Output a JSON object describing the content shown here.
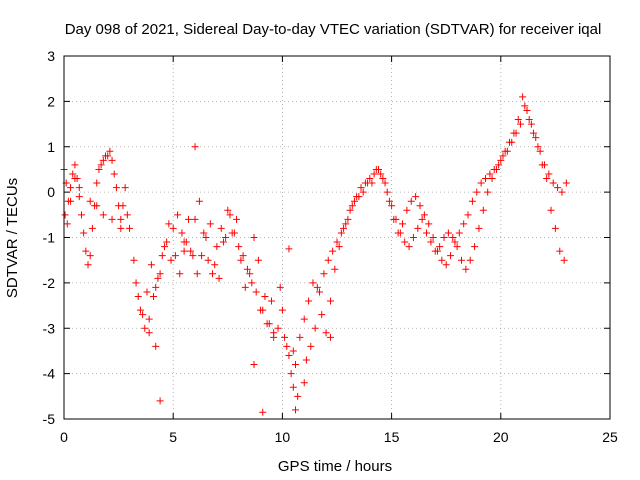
{
  "chart_data": {
    "type": "scatter",
    "title": "Day 098 of 2021, Sidereal Day-to-day VTEC variation (SDTVAR) for receiver iqal",
    "xlabel": "GPS time / hours",
    "ylabel": "SDTVAR / TECUs",
    "xlim": [
      0,
      25
    ],
    "ylim": [
      -5,
      3
    ],
    "xticks": [
      0,
      5,
      10,
      15,
      20,
      25
    ],
    "yticks": [
      -5,
      -4,
      -3,
      -2,
      -1,
      0,
      1,
      2,
      3
    ],
    "grid": true,
    "marker": "+",
    "series": [
      {
        "name": "SDTVAR",
        "color": "#ff0000",
        "x": [
          0.0,
          0.1,
          0.2,
          0.3,
          0.4,
          0.5,
          0.6,
          0.7,
          0.8,
          0.9,
          1.0,
          1.1,
          1.2,
          1.3,
          1.4,
          1.5,
          1.6,
          1.7,
          1.8,
          1.9,
          2.0,
          2.1,
          2.2,
          2.3,
          2.4,
          2.5,
          2.6,
          2.7,
          2.8,
          2.9,
          3.0,
          3.2,
          3.4,
          3.6,
          3.8,
          4.0,
          4.2,
          4.4,
          4.6,
          4.8,
          5.0,
          5.2,
          5.4,
          5.6,
          5.8,
          6.0,
          6.2,
          6.4,
          6.6,
          6.8,
          7.0,
          7.2,
          7.4,
          7.6,
          7.8,
          8.0,
          8.2,
          8.4,
          8.6,
          8.8,
          9.0,
          9.2,
          9.4,
          9.6,
          9.8,
          10.0,
          10.2,
          10.4,
          10.6,
          10.8,
          11.0,
          11.2,
          11.4,
          11.6,
          11.8,
          12.0,
          12.2,
          12.4,
          12.6,
          12.8,
          13.0,
          13.2,
          13.4,
          13.6,
          13.8,
          14.0,
          14.2,
          14.4,
          14.6,
          14.8,
          15.0,
          15.2,
          15.4,
          15.6,
          15.8,
          16.0,
          16.2,
          16.4,
          16.6,
          16.8,
          17.0,
          17.2,
          17.4,
          17.6,
          17.8,
          18.0,
          18.2,
          18.4,
          18.6,
          18.8,
          19.0,
          19.2,
          19.4,
          19.6,
          19.8,
          20.0,
          20.2,
          20.4,
          20.6,
          20.8,
          21.0,
          21.2,
          21.4,
          21.6,
          21.8,
          22.0,
          22.2,
          22.4,
          22.6,
          22.8,
          23.0,
          0.05,
          0.15,
          0.3,
          0.5,
          0.7,
          1.2,
          1.5,
          1.8,
          2.2,
          2.6,
          3.3,
          3.5,
          3.7,
          3.9,
          4.1,
          4.3,
          4.5,
          4.7,
          4.9,
          5.1,
          5.3,
          5.5,
          5.7,
          5.9,
          6.1,
          6.3,
          6.5,
          6.7,
          6.9,
          7.1,
          7.3,
          7.5,
          7.7,
          7.9,
          8.1,
          8.3,
          8.5,
          8.7,
          8.9,
          9.1,
          9.3,
          9.5,
          9.9,
          10.1,
          10.3,
          10.5,
          10.7,
          11.1,
          11.3,
          11.5,
          11.7,
          11.9,
          12.1,
          12.3,
          12.5,
          12.7,
          12.9,
          13.1,
          13.3,
          13.5,
          13.7,
          13.9,
          14.1,
          14.3,
          14.5,
          14.7,
          14.9,
          15.1,
          15.3,
          15.5,
          15.7,
          15.9,
          16.1,
          16.3,
          16.5,
          16.7,
          16.9,
          17.1,
          17.3,
          17.5,
          17.7,
          17.9,
          18.1,
          18.3,
          18.5,
          18.7,
          18.9,
          19.1,
          19.3,
          19.5,
          19.7,
          19.9,
          20.1,
          20.3,
          20.5,
          20.7,
          20.9,
          21.1,
          21.3,
          21.5,
          21.7,
          21.9,
          22.1,
          22.3,
          22.5,
          22.7,
          22.9,
          4.4,
          4.2,
          9.1,
          10.5,
          11.0,
          6.0,
          3.9,
          8.7,
          5.5,
          10.3,
          10.6,
          9.6,
          12.2
        ],
        "y": [
          0.5,
          0.2,
          -0.2,
          0.1,
          0.4,
          0.6,
          0.3,
          0.1,
          -0.5,
          -0.9,
          -1.3,
          -1.6,
          -1.4,
          -0.8,
          -0.3,
          0.2,
          0.5,
          0.6,
          0.7,
          0.8,
          0.8,
          0.9,
          0.7,
          0.4,
          0.1,
          -0.3,
          -0.6,
          -0.3,
          0.1,
          -0.5,
          -0.8,
          -1.5,
          -2.3,
          -2.7,
          -2.2,
          -1.6,
          -2.1,
          -1.8,
          -1.2,
          -0.7,
          -0.8,
          -0.5,
          -0.9,
          -1.1,
          -1.3,
          -0.6,
          -0.2,
          -0.9,
          -1.5,
          -1.8,
          -1.2,
          -0.8,
          -1.0,
          -0.5,
          -0.9,
          -1.2,
          -1.4,
          -1.7,
          -2.0,
          -2.2,
          -2.6,
          -2.3,
          -2.9,
          -3.2,
          -3.0,
          -2.6,
          -3.4,
          -4.0,
          -3.8,
          -3.2,
          -2.8,
          -2.4,
          -2.0,
          -2.1,
          -2.7,
          -3.1,
          -2.4,
          -1.7,
          -1.2,
          -0.8,
          -0.6,
          -0.3,
          -0.1,
          0.1,
          0.2,
          0.3,
          0.4,
          0.5,
          0.3,
          0.0,
          -0.3,
          -0.6,
          -0.9,
          -1.1,
          -1.2,
          -1.0,
          -0.8,
          -0.6,
          -0.9,
          -1.1,
          -1.3,
          -1.2,
          -1.0,
          -0.9,
          -1.0,
          -1.2,
          -1.5,
          -1.7,
          -1.5,
          -1.2,
          -0.8,
          -0.4,
          0.0,
          0.3,
          0.5,
          0.7,
          0.9,
          1.1,
          1.3,
          1.6,
          2.1,
          1.8,
          1.5,
          1.2,
          0.9,
          0.6,
          0.4,
          0.2,
          0.1,
          0.0,
          0.2,
          -0.5,
          -0.7,
          -0.2,
          0.3,
          -0.1,
          -0.2,
          -0.3,
          -0.5,
          -0.6,
          -0.8,
          -2.0,
          -2.6,
          -3.0,
          -3.1,
          -2.3,
          -1.9,
          -1.4,
          -1.1,
          -1.5,
          -1.4,
          -1.8,
          -1.1,
          -0.6,
          -1.4,
          -1.8,
          -1.4,
          -1.0,
          -0.7,
          -1.6,
          -1.9,
          -1.1,
          -0.4,
          -0.9,
          -0.6,
          -1.5,
          -2.1,
          -1.8,
          -1.0,
          -1.5,
          -2.6,
          -2.9,
          -2.4,
          -2.1,
          -3.2,
          -3.6,
          -4.3,
          -4.5,
          -3.7,
          -3.4,
          -3.0,
          -2.2,
          -1.8,
          -1.5,
          -1.3,
          -1.1,
          -0.9,
          -0.7,
          -0.4,
          -0.2,
          -0.1,
          0.0,
          0.2,
          0.2,
          0.5,
          0.4,
          0.2,
          -0.2,
          -0.6,
          -0.9,
          -0.7,
          -0.4,
          -0.2,
          -0.1,
          -0.3,
          -0.5,
          -0.7,
          -1.0,
          -1.3,
          -1.5,
          -1.6,
          -1.4,
          -1.1,
          -0.9,
          -0.7,
          -0.5,
          -0.2,
          0.0,
          0.2,
          0.3,
          0.4,
          0.5,
          0.6,
          0.8,
          0.9,
          1.1,
          1.3,
          1.5,
          1.9,
          1.6,
          1.3,
          1.0,
          0.6,
          0.3,
          -0.4,
          -0.8,
          -1.3,
          -1.5,
          -4.6,
          -3.4,
          -4.85,
          -3.5,
          -4.2,
          1.0,
          -2.8,
          -3.8,
          -1.3,
          -1.25,
          -4.8,
          -3.1,
          -3.2
        ]
      }
    ]
  }
}
